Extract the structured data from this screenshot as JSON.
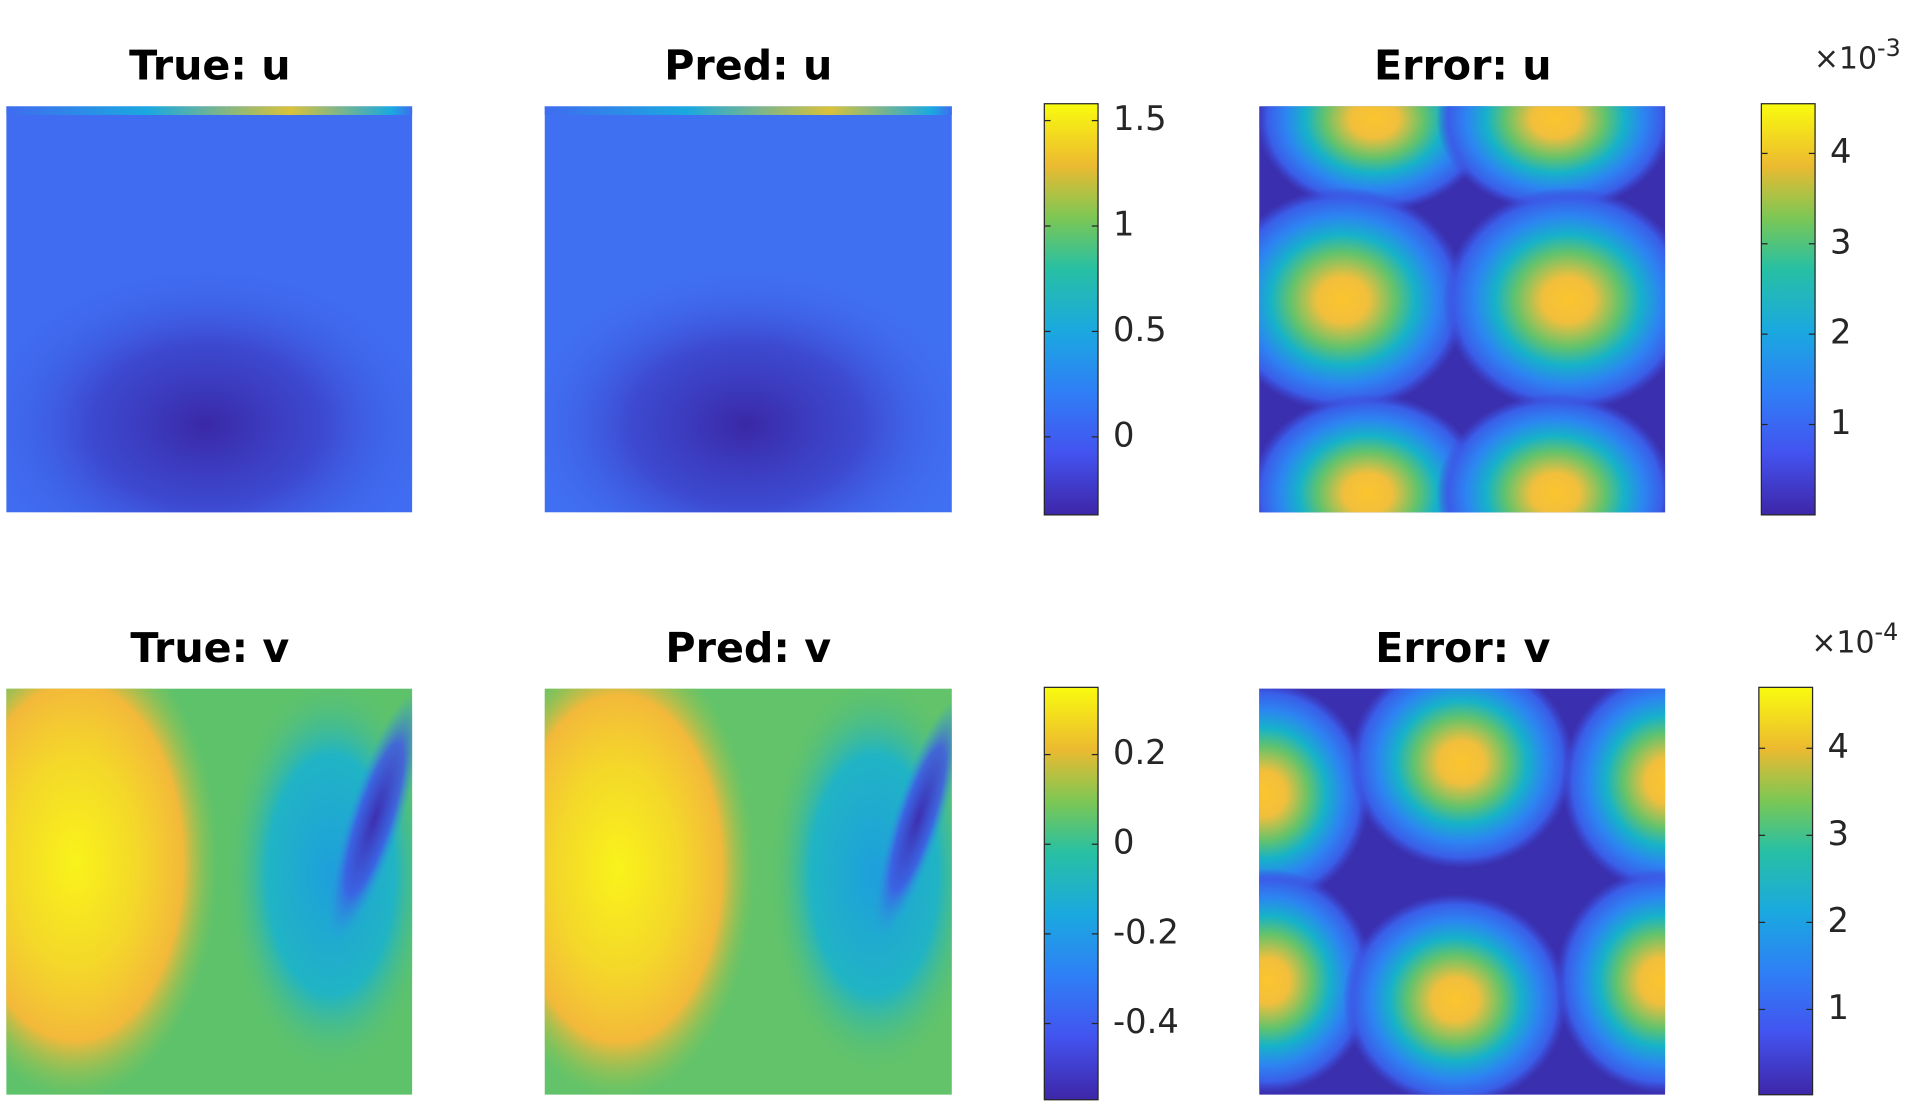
{
  "chart_data": [
    {
      "type": "heatmap",
      "title": "True: u"
    },
    {
      "type": "heatmap",
      "title": "Pred: u",
      "colorbar": {
        "ylim": [
          -0.37,
          1.58
        ],
        "yticks": [
          0,
          0.5,
          1,
          1.5
        ]
      }
    },
    {
      "type": "heatmap",
      "title": "Error: u",
      "colorbar": {
        "ylim": [
          0,
          4.55
        ],
        "yticks": [
          1,
          2,
          3,
          4
        ],
        "multiplier": {
          "base": "×10",
          "exponent": "-3"
        }
      }
    },
    {
      "type": "heatmap",
      "title": "True: v"
    },
    {
      "type": "heatmap",
      "title": "Pred: v",
      "colorbar": {
        "ylim": [
          -0.57,
          0.35
        ],
        "yticks": [
          -0.4,
          -0.2,
          0,
          0.2
        ]
      }
    },
    {
      "type": "heatmap",
      "title": "Error: v",
      "colorbar": {
        "ylim": [
          0.02,
          4.7
        ],
        "yticks": [
          1,
          2,
          3,
          4
        ],
        "multiplier": {
          "base": "×10",
          "exponent": "-4"
        }
      }
    }
  ]
}
